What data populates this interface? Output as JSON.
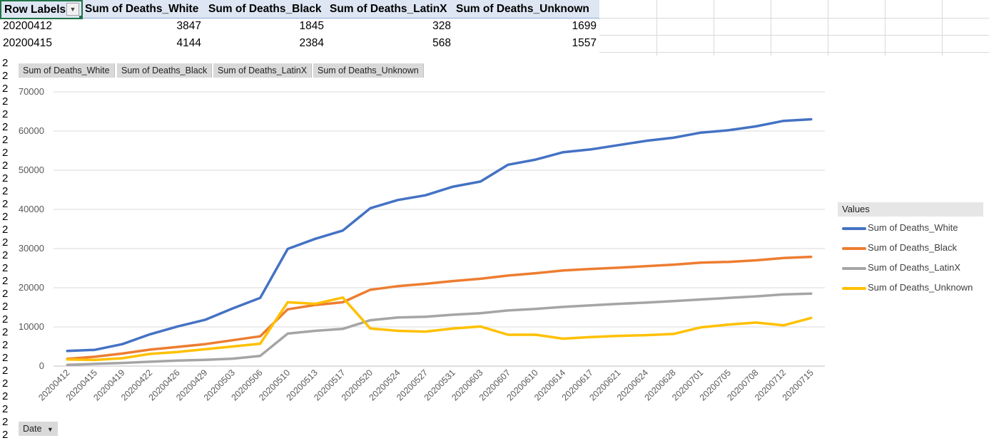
{
  "pivot": {
    "headers": [
      "Row Labels",
      "Sum of Deaths_White",
      "Sum of Deaths_Black",
      "Sum of Deaths_LatinX",
      "Sum of Deaths_Unknown"
    ],
    "rows": [
      {
        "label": "20200412",
        "values": [
          "3847",
          "1845",
          "328",
          "1699"
        ]
      },
      {
        "label": "20200415",
        "values": [
          "4144",
          "2384",
          "568",
          "1557"
        ]
      }
    ],
    "row_label_prefix": "2"
  },
  "chart_ui": {
    "field_buttons": [
      "Sum of Deaths_White",
      "Sum of Deaths_Black",
      "Sum of Deaths_LatinX",
      "Sum of Deaths_Unknown"
    ],
    "axis_field_button": "Date",
    "legend_title": "Values"
  },
  "chart_data": {
    "type": "line",
    "title": "",
    "xlabel": "",
    "ylabel": "",
    "ylim": [
      0,
      70000
    ],
    "yticks": [
      0,
      10000,
      20000,
      30000,
      40000,
      50000,
      60000,
      70000
    ],
    "grid": true,
    "legend": "right",
    "categories": [
      "20200412",
      "20200415",
      "20200419",
      "20200422",
      "20200426",
      "20200429",
      "20200503",
      "20200506",
      "20200510",
      "20200513",
      "20200517",
      "20200520",
      "20200524",
      "20200527",
      "20200531",
      "20200603",
      "20200607",
      "20200610",
      "20200614",
      "20200617",
      "20200621",
      "20200624",
      "20200628",
      "20200701",
      "20200705",
      "20200708",
      "20200712",
      "20200715"
    ],
    "series": [
      {
        "name": "Sum of Deaths_White",
        "color": "#4472c4",
        "values": [
          3847,
          4144,
          5600,
          8100,
          10100,
          11800,
          14700,
          17400,
          29900,
          32500,
          34600,
          40300,
          42400,
          43600,
          45800,
          47100,
          51400,
          52700,
          54600,
          55300,
          56400,
          57500,
          58300,
          59600,
          60200,
          61200,
          62600,
          63000
        ]
      },
      {
        "name": "Sum of Deaths_Black",
        "color": "#ed7d31",
        "values": [
          1845,
          2384,
          3200,
          4200,
          4900,
          5600,
          6600,
          7600,
          14500,
          15600,
          16300,
          19500,
          20400,
          21000,
          21700,
          22300,
          23100,
          23700,
          24400,
          24800,
          25100,
          25500,
          25900,
          26400,
          26600,
          27000,
          27600,
          27900
        ]
      },
      {
        "name": "Sum of Deaths_LatinX",
        "color": "#a5a5a5",
        "values": [
          328,
          568,
          800,
          1100,
          1400,
          1600,
          1900,
          2600,
          8300,
          9000,
          9500,
          11700,
          12400,
          12600,
          13100,
          13500,
          14200,
          14600,
          15100,
          15500,
          15900,
          16200,
          16600,
          17000,
          17400,
          17800,
          18300,
          18500
        ]
      },
      {
        "name": "Sum of Deaths_Unknown",
        "color": "#ffc000",
        "values": [
          1699,
          1557,
          2000,
          3100,
          3600,
          4300,
          5000,
          5700,
          16300,
          15900,
          17500,
          9600,
          9000,
          8800,
          9600,
          10100,
          8000,
          8000,
          7000,
          7400,
          7700,
          7900,
          8200,
          9900,
          10600,
          11100,
          10400,
          12300
        ]
      }
    ]
  }
}
